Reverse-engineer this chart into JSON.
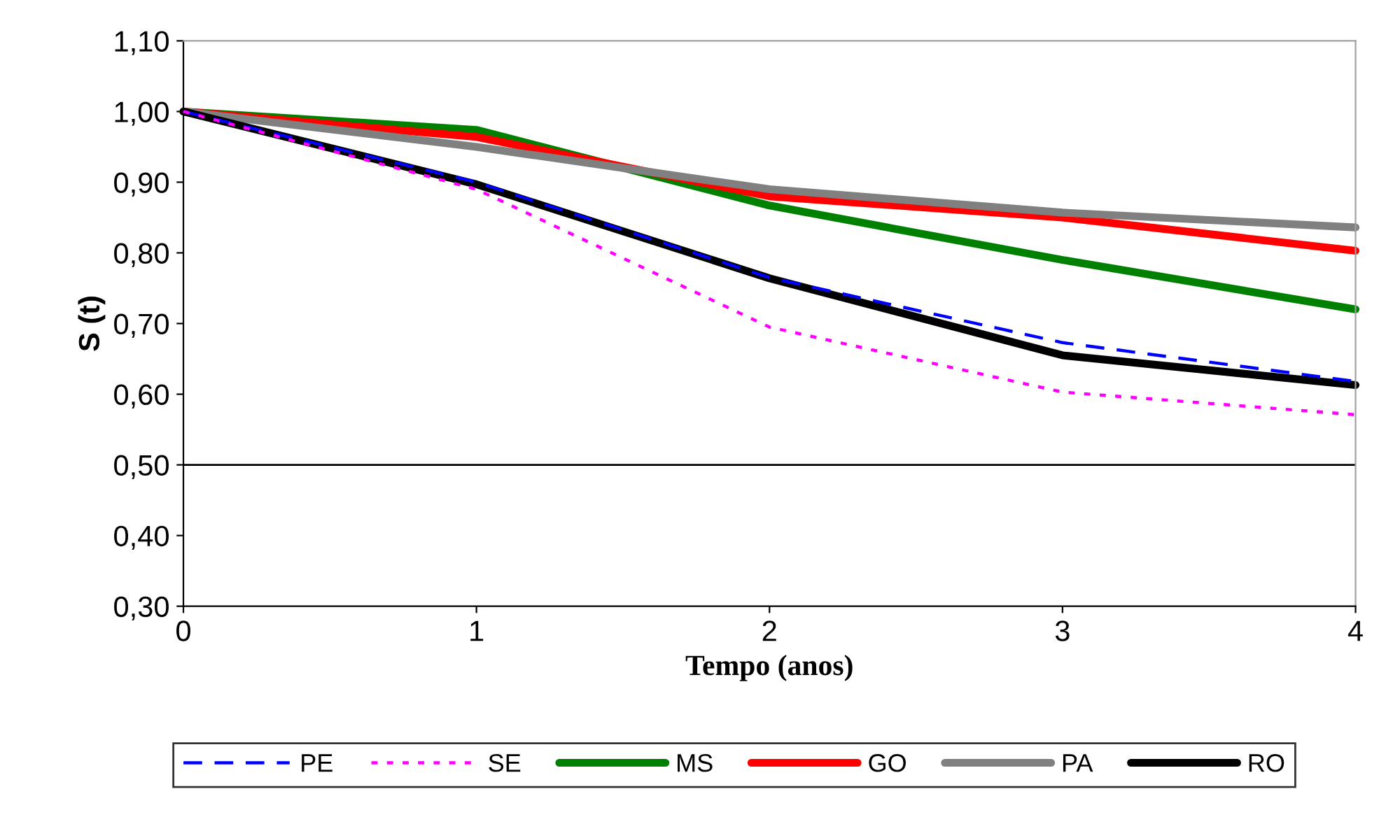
{
  "chart_data": {
    "type": "line",
    "xlabel": "Tempo (anos)",
    "ylabel": "S (t)",
    "x": [
      0,
      1,
      2,
      3,
      4
    ],
    "xlim": [
      0,
      4
    ],
    "xticks": [
      0,
      1,
      2,
      3,
      4
    ],
    "ylim": [
      0.3,
      1.1
    ],
    "yticks": [
      {
        "value": 0.3,
        "label": "0,30"
      },
      {
        "value": 0.4,
        "label": "0,40"
      },
      {
        "value": 0.5,
        "label": "0,50"
      },
      {
        "value": 0.6,
        "label": "0,60"
      },
      {
        "value": 0.7,
        "label": "0,70"
      },
      {
        "value": 0.8,
        "label": "0,80"
      },
      {
        "value": 0.9,
        "label": "0,90"
      },
      {
        "value": 1.0,
        "label": "1,00"
      },
      {
        "value": 1.1,
        "label": "1,10"
      }
    ],
    "ref_lines": [
      {
        "axis": "y",
        "value": 0.5,
        "color": "#000000"
      }
    ],
    "grid": false,
    "legend": "bottom",
    "marker": "none",
    "series": [
      {
        "name": "PE",
        "color": "#0000ff",
        "line_style": "dashed",
        "values": [
          1.0,
          0.9,
          0.765,
          0.673,
          0.618
        ]
      },
      {
        "name": "SE",
        "color": "#ff00ff",
        "line_style": "dotted",
        "values": [
          1.0,
          0.89,
          0.695,
          0.603,
          0.571
        ]
      },
      {
        "name": "MS",
        "color": "#008000",
        "line_style": "solid",
        "values": [
          1.0,
          0.974,
          0.867,
          0.79,
          0.72
        ]
      },
      {
        "name": "GO",
        "color": "#ff0000",
        "line_style": "solid",
        "values": [
          1.0,
          0.964,
          0.88,
          0.85,
          0.803
        ]
      },
      {
        "name": "PA",
        "color": "#808080",
        "line_style": "solid",
        "values": [
          1.0,
          0.95,
          0.89,
          0.857,
          0.836
        ]
      },
      {
        "name": "RO",
        "color": "#000000",
        "line_style": "solid",
        "values": [
          1.0,
          0.897,
          0.764,
          0.655,
          0.613
        ]
      }
    ]
  }
}
